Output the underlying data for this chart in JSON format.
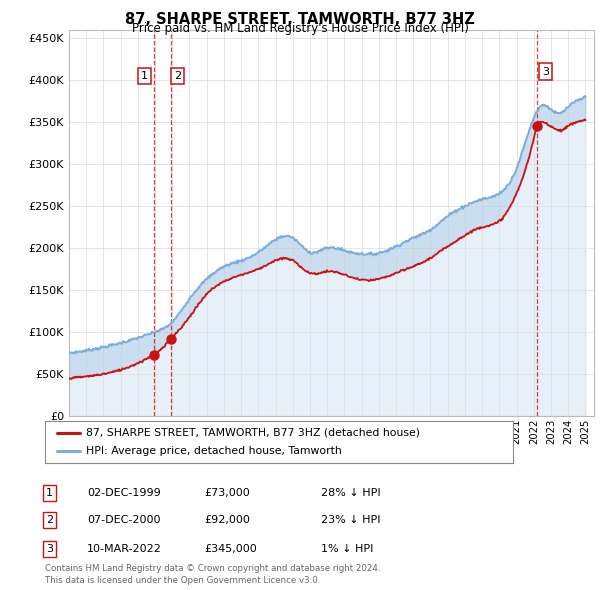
{
  "title": "87, SHARPE STREET, TAMWORTH, B77 3HZ",
  "subtitle": "Price paid vs. HM Land Registry's House Price Index (HPI)",
  "ylim": [
    0,
    460000
  ],
  "yticks": [
    0,
    50000,
    100000,
    150000,
    200000,
    250000,
    300000,
    350000,
    400000,
    450000
  ],
  "ytick_labels": [
    "£0",
    "£50K",
    "£100K",
    "£150K",
    "£200K",
    "£250K",
    "£300K",
    "£350K",
    "£400K",
    "£450K"
  ],
  "xlim_start": 1995.0,
  "xlim_end": 2025.5,
  "hpi_color": "#7aacdc",
  "price_color": "#cc1111",
  "marker_color": "#cc1111",
  "sale_dates": [
    1999.92,
    2000.92,
    2022.19
  ],
  "sale_prices": [
    73000,
    92000,
    345000
  ],
  "sale_labels": [
    "1",
    "2",
    "3"
  ],
  "vline_color": "#cc1111",
  "legend_line1": "87, SHARPE STREET, TAMWORTH, B77 3HZ (detached house)",
  "legend_line2": "HPI: Average price, detached house, Tamworth",
  "table_rows": [
    [
      "1",
      "02-DEC-1999",
      "£73,000",
      "28% ↓ HPI"
    ],
    [
      "2",
      "07-DEC-2000",
      "£92,000",
      "23% ↓ HPI"
    ],
    [
      "3",
      "10-MAR-2022",
      "£345,000",
      "1% ↓ HPI"
    ]
  ],
  "footer": "Contains HM Land Registry data © Crown copyright and database right 2024.\nThis data is licensed under the Open Government Licence v3.0.",
  "bg_color": "#ffffff",
  "grid_color": "#e0e0e0"
}
